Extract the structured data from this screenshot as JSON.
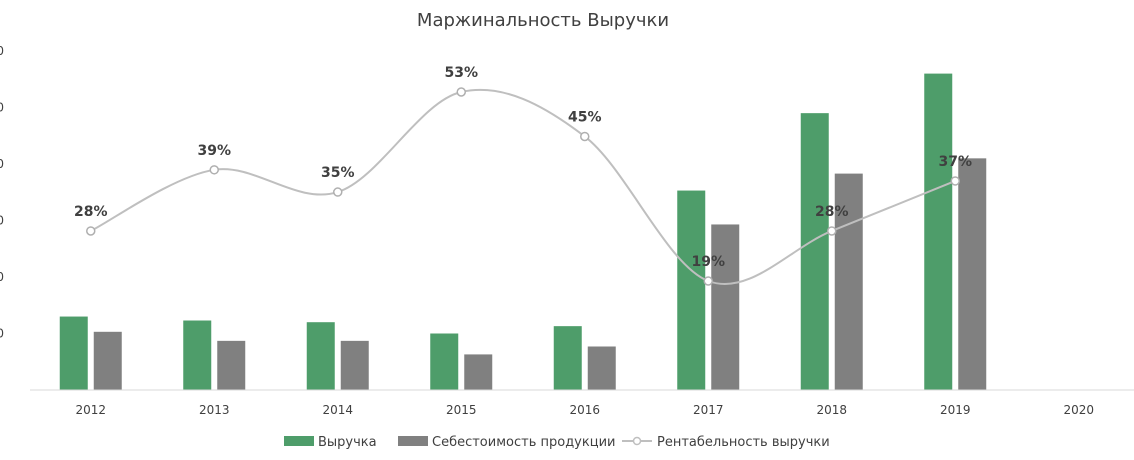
{
  "chart_data": {
    "type": "bar",
    "title": "Маржинальность Выручки",
    "categories": [
      "2012",
      "2013",
      "2014",
      "2015",
      "2016",
      "2017",
      "2018",
      "2019",
      "2020"
    ],
    "ylim": [
      0,
      6
    ],
    "y_tick_labels_visible": [
      "0",
      "0",
      "0",
      "0",
      "0",
      "0"
    ],
    "series": [
      {
        "name": "Выручка",
        "type": "bar",
        "color": "#4E9D6A",
        "values": [
          1.3,
          1.23,
          1.2,
          1.0,
          1.13,
          3.53,
          4.9,
          5.6,
          null
        ]
      },
      {
        "name": "Себестоимость продукции",
        "type": "bar",
        "color": "#808080",
        "values": [
          1.03,
          0.87,
          0.87,
          0.63,
          0.77,
          2.93,
          3.83,
          4.1,
          null
        ]
      },
      {
        "name": "Рентабельность выручки",
        "type": "line",
        "color": "#BFBFBF",
        "smooth": true,
        "values": [
          28,
          39,
          35,
          53,
          45,
          19,
          28,
          37,
          null
        ],
        "labels": [
          "28%",
          "39%",
          "35%",
          "53%",
          "45%",
          "19%",
          "28%",
          "37%",
          ""
        ]
      }
    ],
    "legend": "bottom",
    "grid": false
  }
}
